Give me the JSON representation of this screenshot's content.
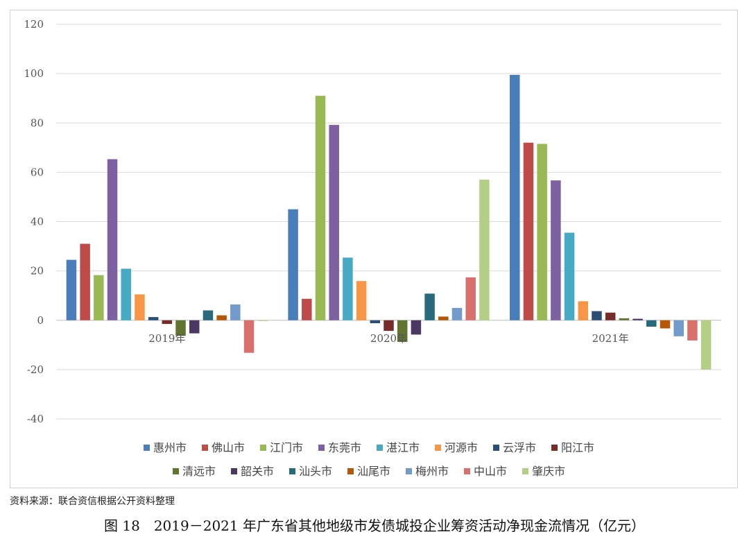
{
  "chart_data": {
    "type": "bar",
    "categories": [
      "2019年",
      "2020年",
      "2021年"
    ],
    "ylim": [
      -40,
      120
    ],
    "yticks": [
      -40,
      -20,
      0,
      20,
      40,
      60,
      80,
      100,
      120
    ],
    "grid": true,
    "legend_position": "bottom",
    "series": [
      {
        "name": "惠州市",
        "color": "#4a7ebb",
        "values": [
          24.5,
          45,
          99.5
        ]
      },
      {
        "name": "佛山市",
        "color": "#be4b48",
        "values": [
          31,
          8.7,
          72
        ]
      },
      {
        "name": "江门市",
        "color": "#98b954",
        "values": [
          18.3,
          91,
          71.5
        ]
      },
      {
        "name": "东莞市",
        "color": "#7d60a0",
        "values": [
          65.3,
          79.2,
          56.7
        ]
      },
      {
        "name": "湛江市",
        "color": "#46aac5",
        "values": [
          20.9,
          25.4,
          35.5
        ]
      },
      {
        "name": "河源市",
        "color": "#f79646",
        "values": [
          10.5,
          15.9,
          7.7
        ]
      },
      {
        "name": "云浮市",
        "color": "#2c4d75",
        "values": [
          1.3,
          -1.2,
          3.7
        ]
      },
      {
        "name": "阳江市",
        "color": "#772c2a",
        "values": [
          -1.5,
          -4.3,
          3.1
        ]
      },
      {
        "name": "清远市",
        "color": "#5f7530",
        "values": [
          -6.3,
          -8.8,
          0.8
        ]
      },
      {
        "name": "韶关市",
        "color": "#4b3862",
        "values": [
          -5.3,
          -5.8,
          0.6
        ]
      },
      {
        "name": "汕头市",
        "color": "#276a7c",
        "values": [
          4,
          10.8,
          -2.6
        ]
      },
      {
        "name": "汕尾市",
        "color": "#b65708",
        "values": [
          2,
          1.5,
          -3.3
        ]
      },
      {
        "name": "梅州市",
        "color": "#729aca",
        "values": [
          6.4,
          5,
          -6.5
        ]
      },
      {
        "name": "中山市",
        "color": "#d9706e",
        "values": [
          -13.2,
          17.4,
          -8.2
        ]
      },
      {
        "name": "肇庆市",
        "color": "#b3cf85",
        "values": [
          -0.3,
          57,
          -20
        ]
      }
    ]
  },
  "source_note": "资料来源：联合资信根据公开资料整理",
  "figure_caption": "图 18　2019－2021 年广东省其他地级市发债城投企业筹资活动净现金流情况（亿元）"
}
